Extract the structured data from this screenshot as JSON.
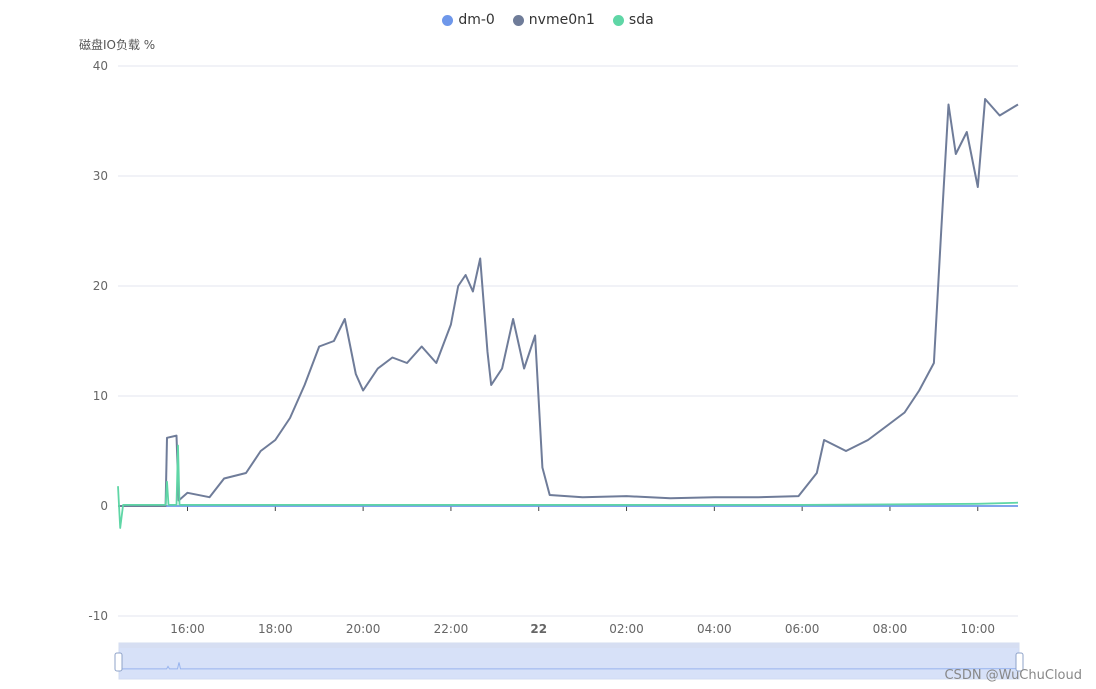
{
  "chart_data": {
    "type": "line",
    "title": "",
    "ylabel": "磁盘IO负载 %",
    "ylim": [
      -10,
      40
    ],
    "yticks": [
      40,
      30,
      20,
      10,
      0,
      -10
    ],
    "grid": true,
    "legend_position": "top-center",
    "xlim": [
      "2023-01-21 14:25",
      "2023-01-22 10:55"
    ],
    "xticks": [
      {
        "t": "2023-01-21 16:00",
        "label": "16:00",
        "bold": false
      },
      {
        "t": "2023-01-21 18:00",
        "label": "18:00",
        "bold": false
      },
      {
        "t": "2023-01-21 20:00",
        "label": "20:00",
        "bold": false
      },
      {
        "t": "2023-01-21 22:00",
        "label": "22:00",
        "bold": false
      },
      {
        "t": "2023-01-22 00:00",
        "label": "22",
        "bold": true
      },
      {
        "t": "2023-01-22 02:00",
        "label": "02:00",
        "bold": false
      },
      {
        "t": "2023-01-22 04:00",
        "label": "04:00",
        "bold": false
      },
      {
        "t": "2023-01-22 06:00",
        "label": "06:00",
        "bold": false
      },
      {
        "t": "2023-01-22 08:00",
        "label": "08:00",
        "bold": false
      },
      {
        "t": "2023-01-22 10:00",
        "label": "10:00",
        "bold": false
      }
    ],
    "series": [
      {
        "name": "dm-0",
        "color": "#6e97ea",
        "points": [
          [
            "2023-01-21 14:25",
            0
          ],
          [
            "2023-01-22 10:55",
            0
          ]
        ]
      },
      {
        "name": "nvme0n1",
        "color": "#6f7c99",
        "points": [
          [
            "2023-01-21 14:25",
            0
          ],
          [
            "2023-01-21 15:30",
            0
          ],
          [
            "2023-01-21 15:32",
            6.2
          ],
          [
            "2023-01-21 15:45",
            6.4
          ],
          [
            "2023-01-21 15:48",
            0.5
          ],
          [
            "2023-01-21 16:00",
            1.2
          ],
          [
            "2023-01-21 16:30",
            0.8
          ],
          [
            "2023-01-21 16:50",
            2.5
          ],
          [
            "2023-01-21 17:20",
            3.0
          ],
          [
            "2023-01-21 17:40",
            5.0
          ],
          [
            "2023-01-21 18:00",
            6.0
          ],
          [
            "2023-01-21 18:20",
            8.0
          ],
          [
            "2023-01-21 18:40",
            11.0
          ],
          [
            "2023-01-21 19:00",
            14.5
          ],
          [
            "2023-01-21 19:20",
            15.0
          ],
          [
            "2023-01-21 19:35",
            17.0
          ],
          [
            "2023-01-21 19:50",
            12.0
          ],
          [
            "2023-01-21 20:00",
            10.5
          ],
          [
            "2023-01-21 20:20",
            12.5
          ],
          [
            "2023-01-21 20:40",
            13.5
          ],
          [
            "2023-01-21 21:00",
            13.0
          ],
          [
            "2023-01-21 21:20",
            14.5
          ],
          [
            "2023-01-21 21:40",
            13.0
          ],
          [
            "2023-01-21 22:00",
            16.5
          ],
          [
            "2023-01-21 22:10",
            20.0
          ],
          [
            "2023-01-21 22:20",
            21.0
          ],
          [
            "2023-01-21 22:30",
            19.5
          ],
          [
            "2023-01-21 22:40",
            22.5
          ],
          [
            "2023-01-21 22:50",
            14.0
          ],
          [
            "2023-01-21 22:55",
            11.0
          ],
          [
            "2023-01-21 23:10",
            12.5
          ],
          [
            "2023-01-21 23:25",
            17.0
          ],
          [
            "2023-01-21 23:40",
            12.5
          ],
          [
            "2023-01-21 23:55",
            15.5
          ],
          [
            "2023-01-22 00:05",
            3.5
          ],
          [
            "2023-01-22 00:15",
            1.0
          ],
          [
            "2023-01-22 01:00",
            0.8
          ],
          [
            "2023-01-22 02:00",
            0.9
          ],
          [
            "2023-01-22 03:00",
            0.7
          ],
          [
            "2023-01-22 04:00",
            0.8
          ],
          [
            "2023-01-22 05:00",
            0.8
          ],
          [
            "2023-01-22 05:55",
            0.9
          ],
          [
            "2023-01-22 06:20",
            3.0
          ],
          [
            "2023-01-22 06:30",
            6.0
          ],
          [
            "2023-01-22 07:00",
            5.0
          ],
          [
            "2023-01-22 07:30",
            6.0
          ],
          [
            "2023-01-22 08:00",
            7.5
          ],
          [
            "2023-01-22 08:20",
            8.5
          ],
          [
            "2023-01-22 08:40",
            10.5
          ],
          [
            "2023-01-22 09:00",
            13.0
          ],
          [
            "2023-01-22 09:10",
            25.0
          ],
          [
            "2023-01-22 09:20",
            36.5
          ],
          [
            "2023-01-22 09:30",
            32.0
          ],
          [
            "2023-01-22 09:45",
            34.0
          ],
          [
            "2023-01-22 10:00",
            29.0
          ],
          [
            "2023-01-22 10:10",
            37.0
          ],
          [
            "2023-01-22 10:30",
            35.5
          ],
          [
            "2023-01-22 10:55",
            36.5
          ]
        ]
      },
      {
        "name": "sda",
        "color": "#5fd6a6",
        "points": [
          [
            "2023-01-21 14:25",
            1.8
          ],
          [
            "2023-01-21 14:28",
            -2.0
          ],
          [
            "2023-01-21 14:32",
            0.1
          ],
          [
            "2023-01-21 15:30",
            0.1
          ],
          [
            "2023-01-21 15:32",
            2.2
          ],
          [
            "2023-01-21 15:34",
            0.1
          ],
          [
            "2023-01-21 15:45",
            0.1
          ],
          [
            "2023-01-21 15:47",
            5.5
          ],
          [
            "2023-01-21 15:49",
            0.1
          ],
          [
            "2023-01-22 06:00",
            0.1
          ],
          [
            "2023-01-22 10:00",
            0.2
          ],
          [
            "2023-01-22 10:55",
            0.3
          ]
        ]
      }
    ]
  },
  "watermark": "CSDN @WuChuCloud"
}
